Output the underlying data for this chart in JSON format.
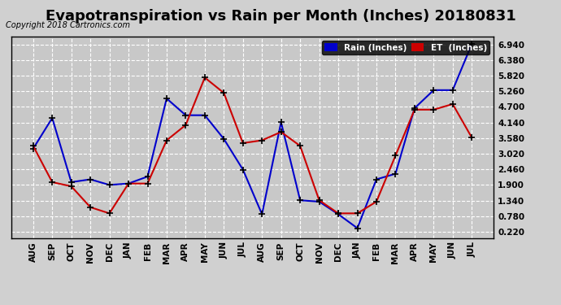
{
  "title": "Evapotranspiration vs Rain per Month (Inches) 20180831",
  "copyright": "Copyright 2018 Cartronics.com",
  "x_labels": [
    "AUG",
    "SEP",
    "OCT",
    "NOV",
    "DEC",
    "JAN",
    "FEB",
    "MAR",
    "APR",
    "MAY",
    "JUN",
    "JUL",
    "AUG",
    "SEP",
    "OCT",
    "NOV",
    "DEC",
    "JAN",
    "FEB",
    "MAR",
    "APR",
    "MAY",
    "JUN",
    "JUL"
  ],
  "rain_values": [
    3.2,
    4.3,
    2.0,
    2.1,
    1.9,
    1.95,
    2.2,
    5.0,
    4.4,
    4.4,
    3.55,
    2.45,
    0.85,
    4.15,
    1.35,
    1.3,
    0.85,
    0.35,
    2.1,
    2.3,
    4.65,
    5.3,
    5.3,
    6.95
  ],
  "et_values": [
    3.3,
    2.0,
    1.85,
    1.1,
    0.88,
    1.95,
    1.95,
    3.5,
    4.05,
    5.75,
    5.2,
    3.4,
    3.5,
    3.8,
    3.3,
    1.35,
    0.88,
    0.88,
    1.3,
    2.95,
    4.6,
    4.6,
    4.8,
    3.6
  ],
  "rain_color": "#0000cc",
  "et_color": "#cc0000",
  "ylim": [
    0.0,
    7.22
  ],
  "yticks": [
    0.22,
    0.78,
    1.34,
    1.9,
    2.46,
    3.02,
    3.58,
    4.14,
    4.7,
    5.26,
    5.82,
    6.38,
    6.94
  ],
  "background_color": "#d0d0d0",
  "plot_bg_color": "#c8c8c8",
  "grid_color": "#ffffff",
  "title_fontsize": 13,
  "legend_rain_label": "Rain (Inches)",
  "legend_et_label": "ET  (Inches)"
}
